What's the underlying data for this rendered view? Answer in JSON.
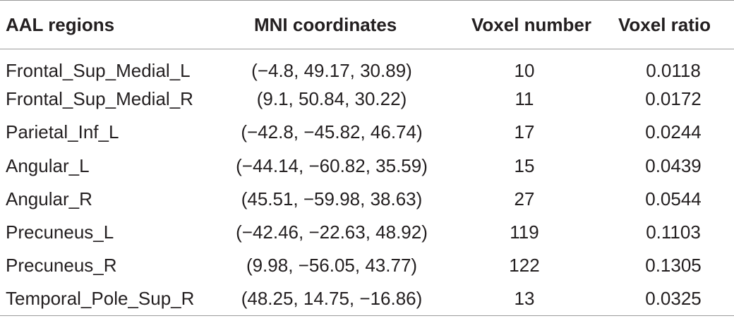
{
  "table": {
    "headers": [
      "AAL regions",
      "MNI coordinates",
      "Voxel number",
      "Voxel ratio"
    ],
    "rows": [
      [
        "Frontal_Sup_Medial_L",
        "(−4.8, 49.17, 30.89)",
        "10",
        "0.0118"
      ],
      [
        "Frontal_Sup_Medial_R",
        "(9.1, 50.84, 30.22)",
        "11",
        "0.0172"
      ],
      [
        "Parietal_Inf_L",
        "(−42.8, −45.82, 46.74)",
        "17",
        "0.0244"
      ],
      [
        "Angular_L",
        "(−44.14, −60.82, 35.59)",
        "15",
        "0.0439"
      ],
      [
        "Angular_R",
        "(45.51, −59.98, 38.63)",
        "27",
        "0.0544"
      ],
      [
        "Precuneus_L",
        "(−42.46, −22.63, 48.92)",
        "119",
        "0.1103"
      ],
      [
        "Precuneus_R",
        "(9.98, −56.05, 43.77)",
        "122",
        "0.1305"
      ],
      [
        "Temporal_Pole_Sup_R",
        "(48.25, 14.75, −16.86)",
        "13",
        "0.0325"
      ]
    ]
  }
}
